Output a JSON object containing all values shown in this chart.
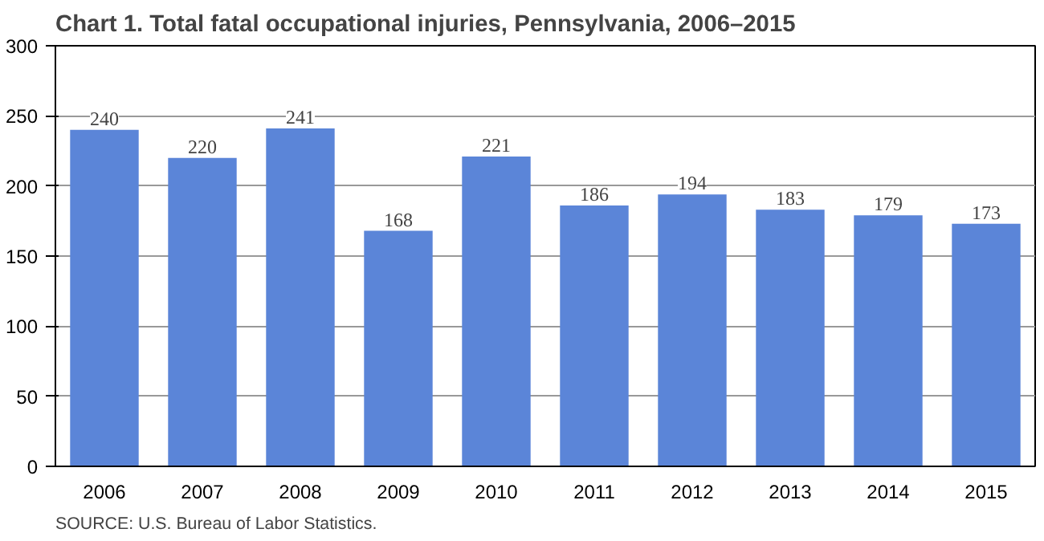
{
  "chart_data": {
    "type": "bar",
    "title": "Chart 1. Total fatal occupational injuries, Pennsylvania, 2006–2015",
    "categories": [
      "2006",
      "2007",
      "2008",
      "2009",
      "2010",
      "2011",
      "2012",
      "2013",
      "2014",
      "2015"
    ],
    "values": [
      240,
      220,
      241,
      168,
      221,
      186,
      194,
      183,
      179,
      173
    ],
    "color": "#5b85d8",
    "ylim": [
      0,
      300
    ],
    "yticks": [
      0,
      50,
      100,
      150,
      200,
      250,
      300
    ],
    "grid": "y",
    "data_labels": true,
    "annotations": [
      "SOURCE: U.S. Bureau of Labor Statistics."
    ]
  }
}
